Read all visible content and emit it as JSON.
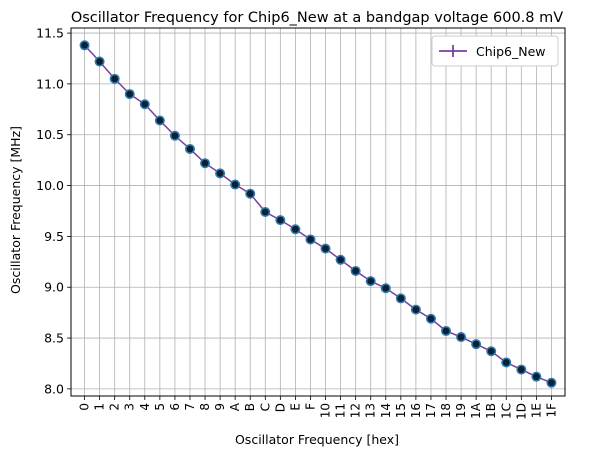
{
  "chart_data": {
    "type": "line",
    "title": "Oscillator Frequency for Chip6_New at a bandgap voltage 600.8 mV",
    "xlabel": "Oscillator Frequency [hex]",
    "ylabel": "Oscillator Frequency [MHz]",
    "categories": [
      "0",
      "1",
      "2",
      "3",
      "4",
      "5",
      "6",
      "7",
      "8",
      "9",
      "A",
      "B",
      "C",
      "D",
      "E",
      "F",
      "10",
      "11",
      "12",
      "13",
      "14",
      "15",
      "16",
      "17",
      "18",
      "19",
      "1A",
      "1B",
      "1C",
      "1D",
      "1E",
      "1F"
    ],
    "ylim": [
      7.93,
      11.55
    ],
    "yticks": [
      "8.0",
      "8.5",
      "9.0",
      "9.5",
      "10.0",
      "10.5",
      "11.0",
      "11.5"
    ],
    "grid": true,
    "legend": "top-right",
    "series": [
      {
        "name": "Chip6_New",
        "values": [
          11.38,
          11.22,
          11.05,
          10.9,
          10.8,
          10.64,
          10.49,
          10.36,
          10.22,
          10.12,
          10.01,
          9.92,
          9.74,
          9.66,
          9.57,
          9.47,
          9.38,
          9.27,
          9.16,
          9.06,
          8.99,
          8.89,
          8.78,
          8.69,
          8.57,
          8.51,
          8.44,
          8.37,
          8.26,
          8.19,
          8.12,
          8.06
        ],
        "line_color": "#7b3f9e",
        "marker_face": "#0d1f33",
        "marker_edge": "#2a7ab0"
      }
    ]
  }
}
